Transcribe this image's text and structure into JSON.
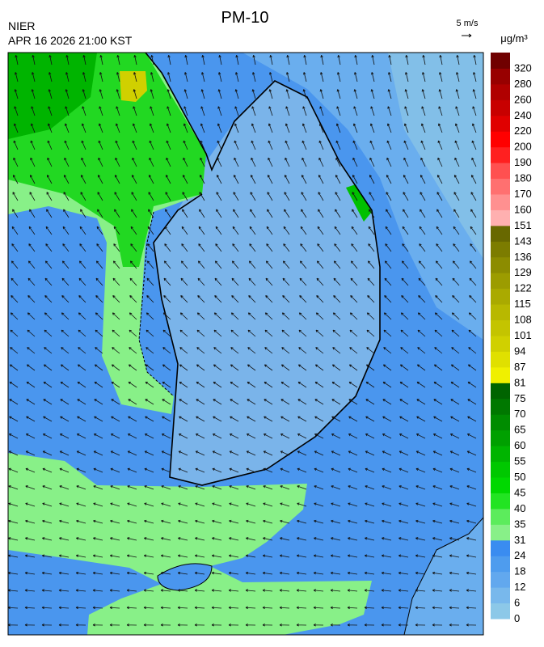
{
  "header": {
    "title": "PM-10",
    "agency": "NIER",
    "timestamp": "APR 16 2026 21:00 KST",
    "wind_scale": "5 m/s"
  },
  "legend": {
    "unit": "μg/m³",
    "levels": [
      {
        "label": 0,
        "color": "#8cc8e8"
      },
      {
        "label": 6,
        "color": "#78b8ec"
      },
      {
        "label": 12,
        "color": "#62a8ee"
      },
      {
        "label": 18,
        "color": "#4e9cee"
      },
      {
        "label": 24,
        "color": "#3a8cf0"
      },
      {
        "label": 31,
        "color": "#88f088"
      },
      {
        "label": 35,
        "color": "#5cec5c"
      },
      {
        "label": 40,
        "color": "#22e422"
      },
      {
        "label": 45,
        "color": "#00d800"
      },
      {
        "label": 50,
        "color": "#00c800"
      },
      {
        "label": 55,
        "color": "#00b400"
      },
      {
        "label": 60,
        "color": "#00a000"
      },
      {
        "label": 65,
        "color": "#008c00"
      },
      {
        "label": 70,
        "color": "#007800"
      },
      {
        "label": 75,
        "color": "#006400"
      },
      {
        "label": 81,
        "color": "#f0f000"
      },
      {
        "label": 87,
        "color": "#e0e000"
      },
      {
        "label": 94,
        "color": "#d0d000"
      },
      {
        "label": 101,
        "color": "#c4c400"
      },
      {
        "label": 108,
        "color": "#b8b800"
      },
      {
        "label": 115,
        "color": "#aaaa00"
      },
      {
        "label": 122,
        "color": "#9c9c00"
      },
      {
        "label": 129,
        "color": "#8c8c00"
      },
      {
        "label": 136,
        "color": "#7c7c00"
      },
      {
        "label": 143,
        "color": "#686800"
      },
      {
        "label": 151,
        "color": "#ffb0b0"
      },
      {
        "label": 160,
        "color": "#ff9090"
      },
      {
        "label": 170,
        "color": "#ff7070"
      },
      {
        "label": 180,
        "color": "#ff5050"
      },
      {
        "label": 190,
        "color": "#ff2020"
      },
      {
        "label": 200,
        "color": "#ff0000"
      },
      {
        "label": 220,
        "color": "#e00000"
      },
      {
        "label": 240,
        "color": "#c80000"
      },
      {
        "label": 260,
        "color": "#b00000"
      },
      {
        "label": 280,
        "color": "#980000"
      },
      {
        "label": 320,
        "color": "#700000"
      }
    ]
  }
}
